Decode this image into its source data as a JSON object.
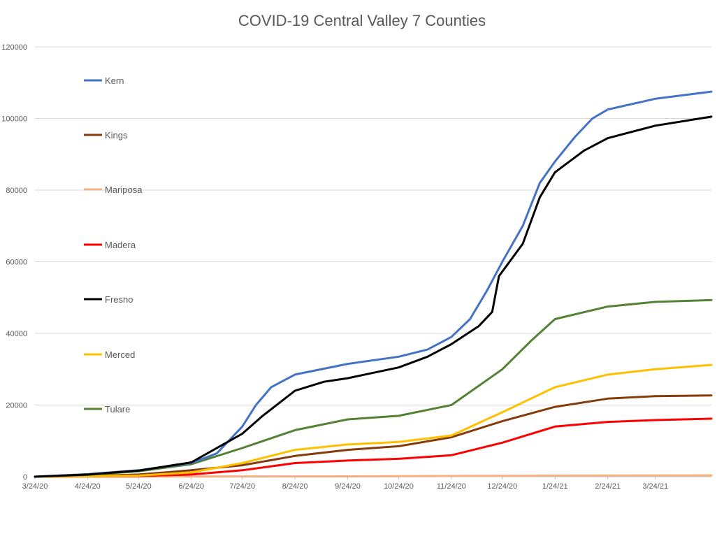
{
  "chart_data": {
    "type": "line",
    "title": "COVID-19 Central Valley 7 Counties",
    "xlabel": "",
    "ylabel": "",
    "ylim": [
      0,
      120000
    ],
    "yticks": [
      "0",
      "20000",
      "40000",
      "60000",
      "80000",
      "100000",
      "120000"
    ],
    "x_range": [
      "2020-03-24",
      "2021-04-26"
    ],
    "x_tick_labels": [
      "3/24/20",
      "4/24/20",
      "5/24/20",
      "6/24/20",
      "7/24/20",
      "8/24/20",
      "9/24/20",
      "10/24/20",
      "11/24/20",
      "12/24/20",
      "1/24/21",
      "2/24/21",
      "3/24/21"
    ],
    "x_tick_dates": [
      "2020-03-24",
      "2020-04-24",
      "2020-05-24",
      "2020-06-24",
      "2020-07-24",
      "2020-08-24",
      "2020-09-24",
      "2020-10-24",
      "2020-11-24",
      "2020-12-24",
      "2021-01-24",
      "2021-02-24",
      "2021-03-24"
    ],
    "grid": true,
    "legend_position": "left",
    "series": [
      {
        "name": "Kern",
        "color": "#4472c4",
        "points": [
          [
            "2020-03-24",
            0
          ],
          [
            "2020-04-24",
            700
          ],
          [
            "2020-05-24",
            1800
          ],
          [
            "2020-06-24",
            3800
          ],
          [
            "2020-07-09",
            6500
          ],
          [
            "2020-07-24",
            14000
          ],
          [
            "2020-08-01",
            20000
          ],
          [
            "2020-08-10",
            25000
          ],
          [
            "2020-08-24",
            28500
          ],
          [
            "2020-09-24",
            31500
          ],
          [
            "2020-10-24",
            33500
          ],
          [
            "2020-11-10",
            35500
          ],
          [
            "2020-11-24",
            39000
          ],
          [
            "2020-12-05",
            44000
          ],
          [
            "2020-12-15",
            52000
          ],
          [
            "2020-12-24",
            60000
          ],
          [
            "2021-01-05",
            70000
          ],
          [
            "2021-01-15",
            82000
          ],
          [
            "2021-01-24",
            88000
          ],
          [
            "2021-02-05",
            95000
          ],
          [
            "2021-02-15",
            100000
          ],
          [
            "2021-02-24",
            102500
          ],
          [
            "2021-03-24",
            105500
          ],
          [
            "2021-04-26",
            107500
          ]
        ]
      },
      {
        "name": "Kings",
        "color": "#843c0c",
        "points": [
          [
            "2020-03-24",
            0
          ],
          [
            "2020-04-24",
            200
          ],
          [
            "2020-05-24",
            600
          ],
          [
            "2020-06-24",
            1800
          ],
          [
            "2020-07-24",
            3200
          ],
          [
            "2020-08-24",
            5800
          ],
          [
            "2020-09-24",
            7500
          ],
          [
            "2020-10-24",
            8500
          ],
          [
            "2020-11-24",
            11000
          ],
          [
            "2020-12-24",
            15500
          ],
          [
            "2021-01-24",
            19500
          ],
          [
            "2021-02-24",
            21800
          ],
          [
            "2021-03-24",
            22500
          ],
          [
            "2021-04-26",
            22700
          ]
        ]
      },
      {
        "name": "Mariposa",
        "color": "#f4b183",
        "points": [
          [
            "2020-03-24",
            0
          ],
          [
            "2020-06-24",
            50
          ],
          [
            "2020-09-24",
            100
          ],
          [
            "2020-12-24",
            250
          ],
          [
            "2021-01-24",
            300
          ],
          [
            "2021-04-26",
            380
          ]
        ]
      },
      {
        "name": "Madera",
        "color": "#ff0000",
        "points": [
          [
            "2020-03-24",
            0
          ],
          [
            "2020-05-24",
            200
          ],
          [
            "2020-06-24",
            600
          ],
          [
            "2020-07-24",
            1800
          ],
          [
            "2020-08-24",
            3800
          ],
          [
            "2020-09-24",
            4500
          ],
          [
            "2020-10-24",
            5000
          ],
          [
            "2020-11-24",
            6000
          ],
          [
            "2020-12-24",
            9500
          ],
          [
            "2021-01-24",
            14000
          ],
          [
            "2021-02-24",
            15300
          ],
          [
            "2021-03-24",
            15800
          ],
          [
            "2021-04-26",
            16200
          ]
        ]
      },
      {
        "name": "Fresno",
        "color": "#000000",
        "points": [
          [
            "2020-03-24",
            0
          ],
          [
            "2020-04-24",
            600
          ],
          [
            "2020-05-24",
            1700
          ],
          [
            "2020-06-24",
            4000
          ],
          [
            "2020-07-24",
            12000
          ],
          [
            "2020-08-05",
            17000
          ],
          [
            "2020-08-24",
            24000
          ],
          [
            "2020-09-10",
            26500
          ],
          [
            "2020-09-24",
            27500
          ],
          [
            "2020-10-24",
            30500
          ],
          [
            "2020-11-10",
            33500
          ],
          [
            "2020-11-24",
            37000
          ],
          [
            "2020-12-10",
            42000
          ],
          [
            "2020-12-18",
            46000
          ],
          [
            "2020-12-22",
            56000
          ],
          [
            "2021-01-05",
            65000
          ],
          [
            "2021-01-15",
            78000
          ],
          [
            "2021-01-24",
            85000
          ],
          [
            "2021-02-10",
            91000
          ],
          [
            "2021-02-24",
            94500
          ],
          [
            "2021-03-24",
            98000
          ],
          [
            "2021-04-26",
            100500
          ]
        ]
      },
      {
        "name": "Merced",
        "color": "#ffc000",
        "points": [
          [
            "2020-03-24",
            0
          ],
          [
            "2020-05-24",
            300
          ],
          [
            "2020-06-24",
            1200
          ],
          [
            "2020-07-24",
            3800
          ],
          [
            "2020-08-24",
            7500
          ],
          [
            "2020-09-24",
            9000
          ],
          [
            "2020-10-24",
            9700
          ],
          [
            "2020-11-24",
            11500
          ],
          [
            "2020-12-24",
            18000
          ],
          [
            "2021-01-24",
            25000
          ],
          [
            "2021-02-24",
            28500
          ],
          [
            "2021-03-24",
            30000
          ],
          [
            "2021-04-26",
            31200
          ]
        ]
      },
      {
        "name": "Tulare",
        "color": "#548235",
        "points": [
          [
            "2020-03-24",
            0
          ],
          [
            "2020-04-24",
            500
          ],
          [
            "2020-05-24",
            1500
          ],
          [
            "2020-06-24",
            3500
          ],
          [
            "2020-07-24",
            8000
          ],
          [
            "2020-08-24",
            13000
          ],
          [
            "2020-09-24",
            16000
          ],
          [
            "2020-10-24",
            17000
          ],
          [
            "2020-11-24",
            20000
          ],
          [
            "2020-12-24",
            30000
          ],
          [
            "2021-01-10",
            38000
          ],
          [
            "2021-01-24",
            44000
          ],
          [
            "2021-02-24",
            47500
          ],
          [
            "2021-03-24",
            48800
          ],
          [
            "2021-04-26",
            49300
          ]
        ]
      }
    ]
  }
}
